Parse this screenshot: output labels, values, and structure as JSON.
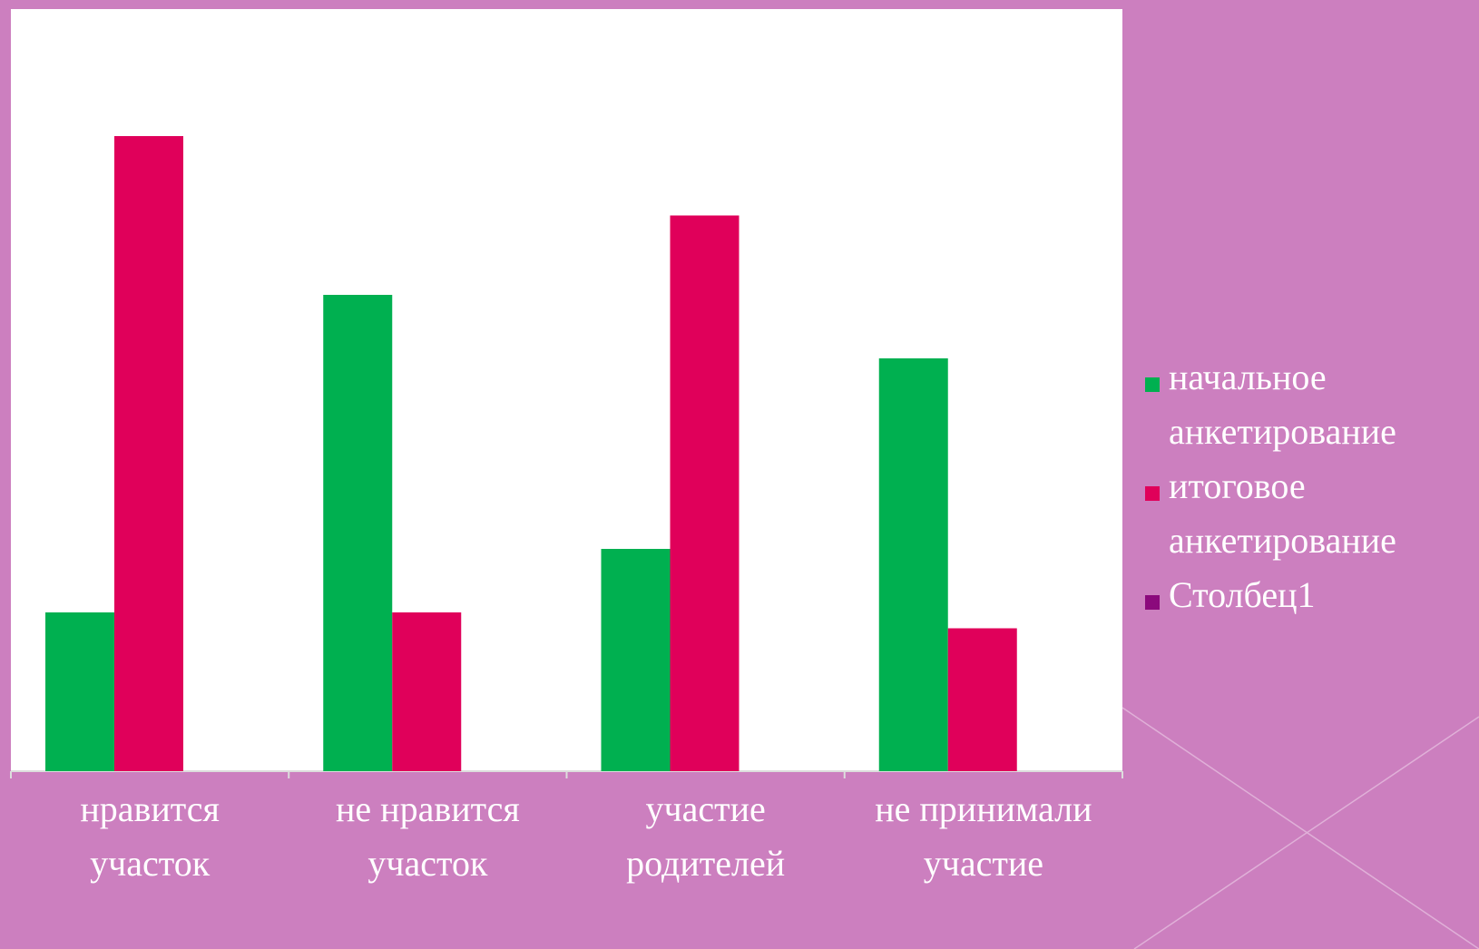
{
  "chart_data": {
    "type": "bar",
    "categories": [
      "нравится участок",
      "не нравится участок",
      "участие родителей",
      "не принимали участие"
    ],
    "series": [
      {
        "name": "начальное анкетирование",
        "color": "#00b050",
        "values": [
          20,
          60,
          28,
          52
        ]
      },
      {
        "name": "итоговое анкетирование",
        "color": "#e0005a",
        "values": [
          80,
          20,
          70,
          18
        ]
      },
      {
        "name": "Столбец1",
        "color": "#8b0a7c",
        "values": [
          null,
          null,
          null,
          null
        ]
      }
    ],
    "ylim": [
      0,
      96
    ],
    "legend": "right"
  }
}
